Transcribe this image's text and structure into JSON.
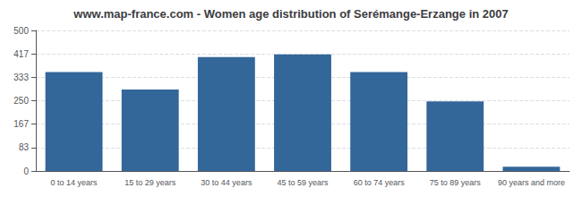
{
  "chart_data": {
    "type": "bar",
    "title": "www.map-france.com - Women age distribution of Serémange-Erzange in 2007",
    "categories": [
      "0 to 14 years",
      "15 to 29 years",
      "30 to 44 years",
      "45 to 59 years",
      "60 to 74 years",
      "75 to 89 years",
      "90 years and more"
    ],
    "values": [
      352,
      290,
      405,
      415,
      352,
      248,
      15
    ],
    "color": "#336699",
    "ylim": [
      0,
      500
    ],
    "yticks": [
      0,
      83,
      167,
      250,
      333,
      417,
      500
    ],
    "grid": true
  }
}
